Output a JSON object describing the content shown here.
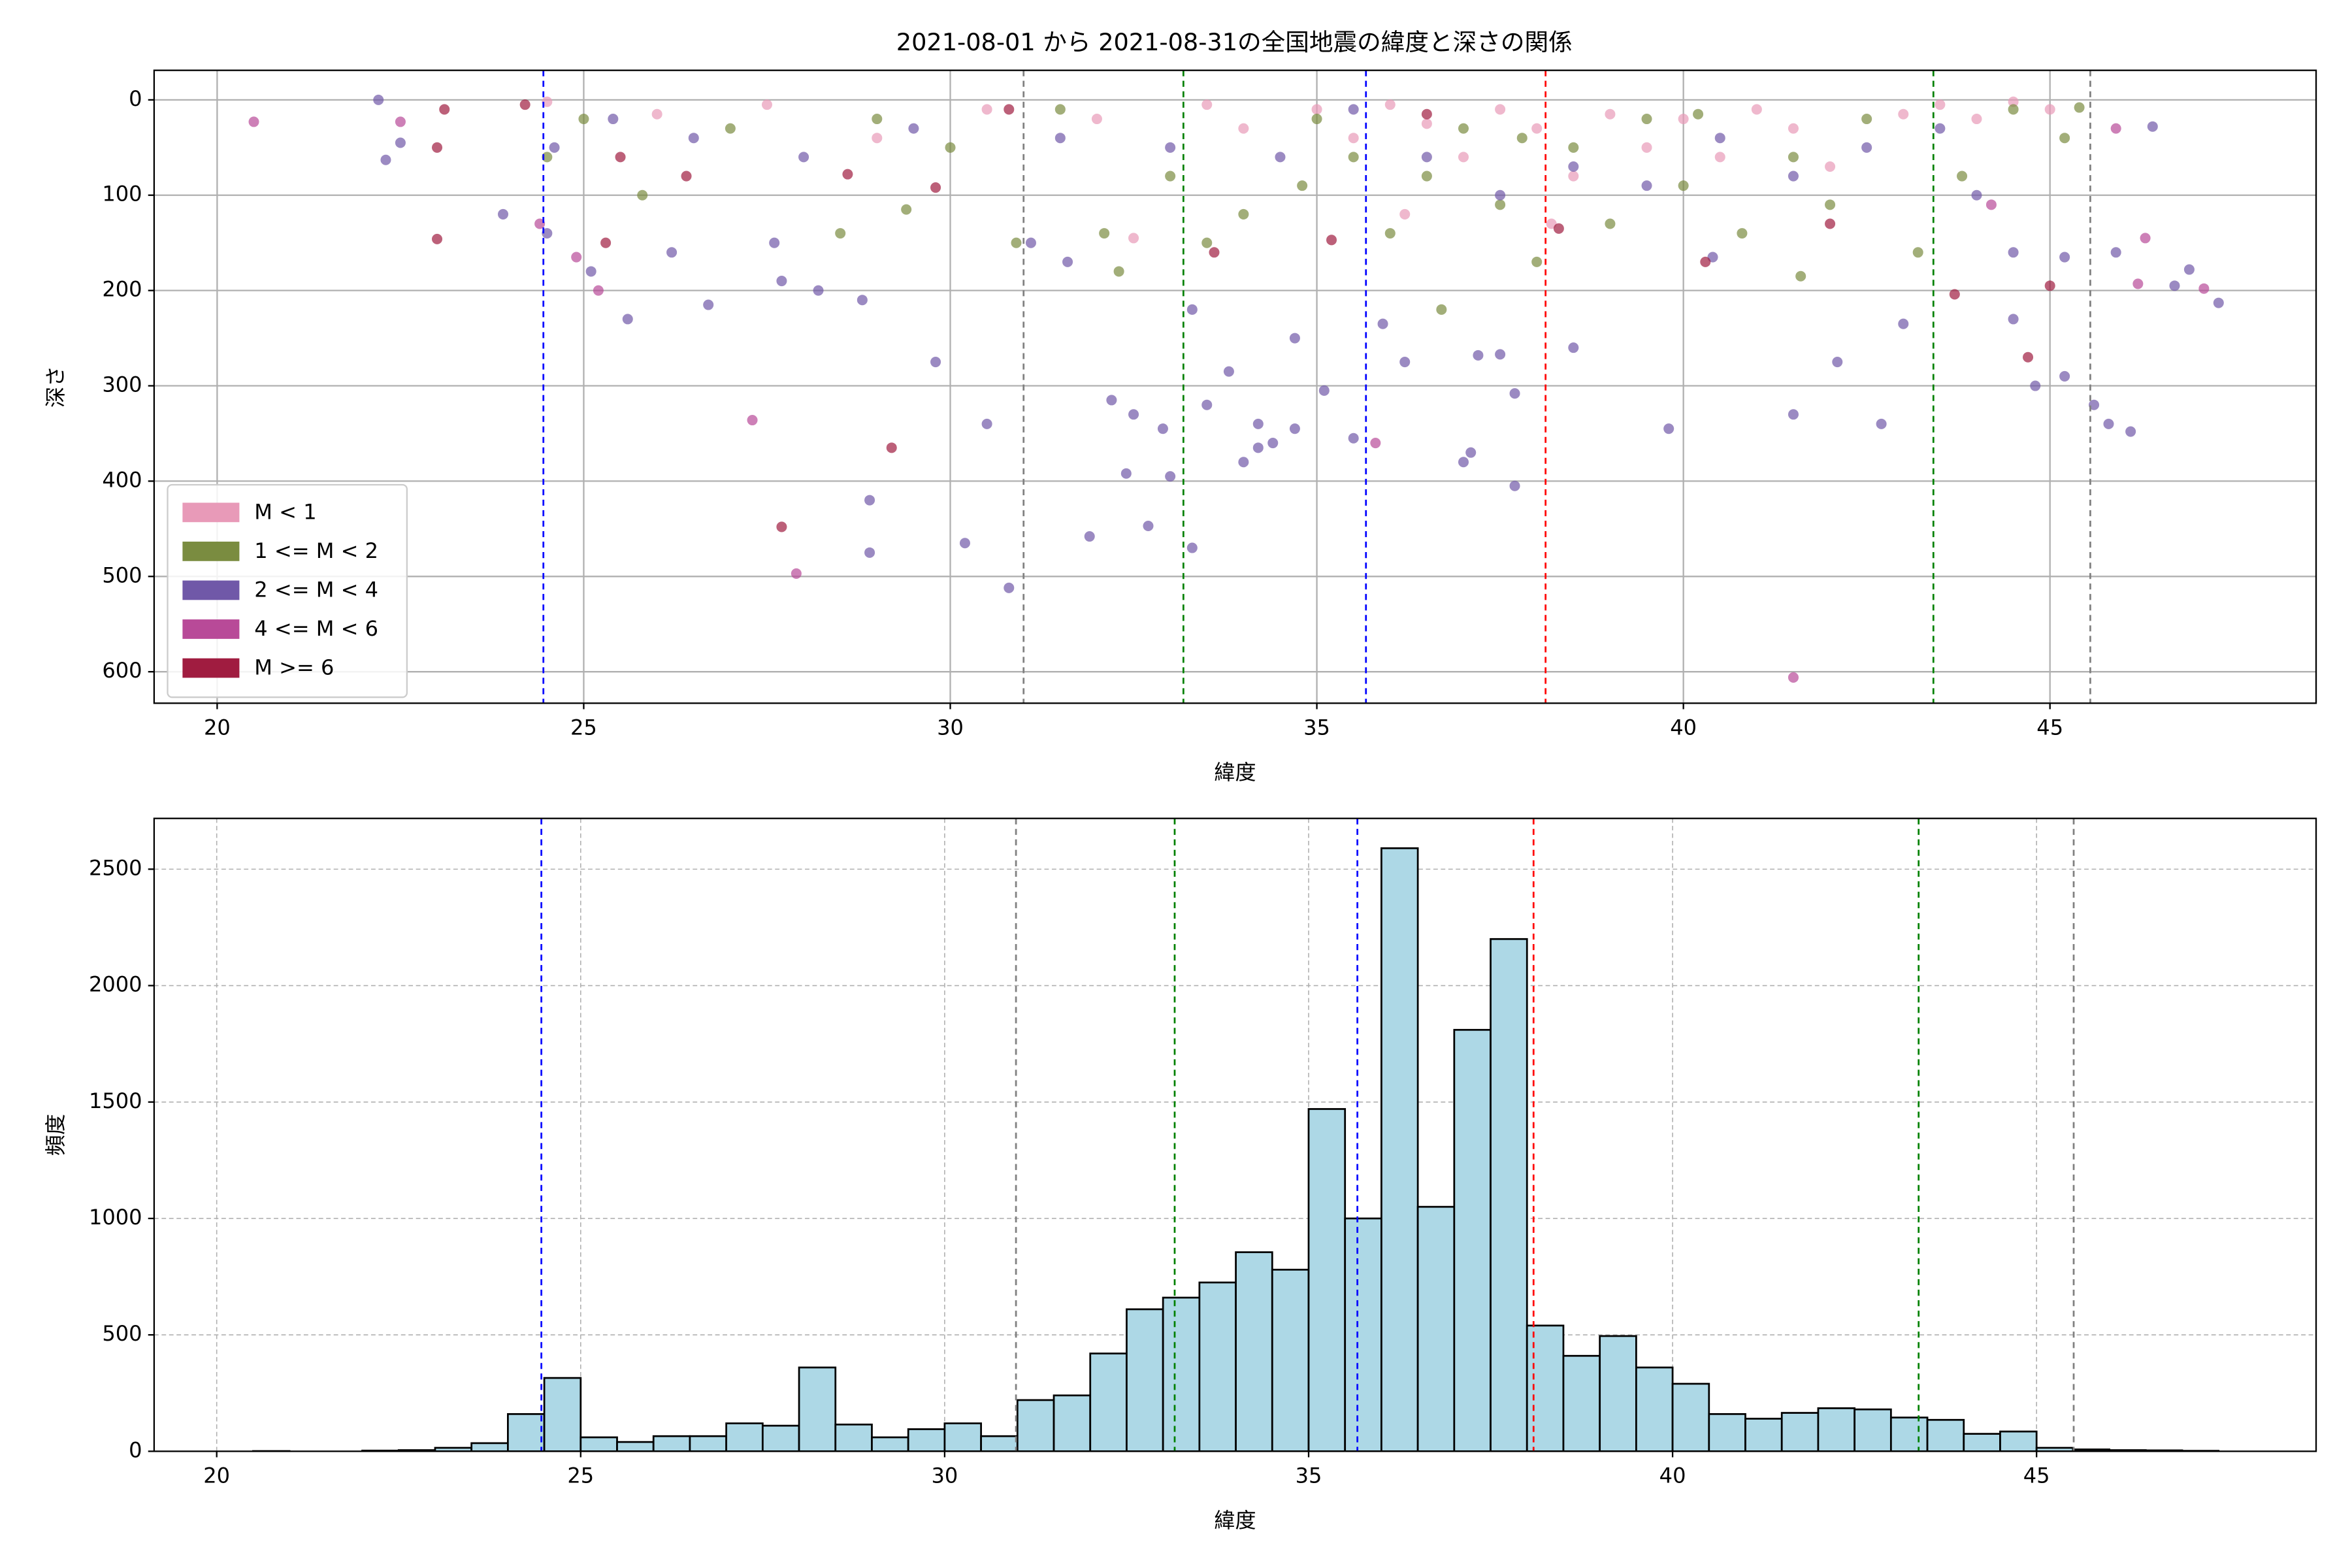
{
  "chart_data": [
    {
      "type": "scatter",
      "title": "2021-08-01 から 2021-08-31の全国地震の緯度と深さの関係",
      "xlabel": "緯度",
      "ylabel": "深さ",
      "xlim": [
        19.14,
        48.63
      ],
      "ylim": [
        -31,
        633
      ],
      "invert_y": true,
      "xticks": [
        20,
        25,
        30,
        35,
        40,
        45
      ],
      "yticks": [
        0,
        100,
        200,
        300,
        400,
        500,
        600
      ],
      "grid": true,
      "legend": "lower left",
      "alpha": 0.7,
      "vlines": [
        {
          "x": 24.45,
          "color": "blue"
        },
        {
          "x": 31.0,
          "color": "gray"
        },
        {
          "x": 33.18,
          "color": "green"
        },
        {
          "x": 35.67,
          "color": "blue"
        },
        {
          "x": 38.12,
          "color": "red"
        },
        {
          "x": 43.41,
          "color": "green"
        },
        {
          "x": 45.55,
          "color": "gray"
        }
      ],
      "series": [
        {
          "name": "M < 1",
          "color": "#e89ab8",
          "x": [
            24.5,
            26.0,
            27.5,
            29.0,
            30.5,
            32.0,
            32.5,
            33.5,
            34.0,
            35.0,
            35.5,
            36.0,
            36.5,
            37.0,
            37.5,
            38.0,
            38.5,
            39.0,
            39.5,
            40.0,
            40.5,
            41.0,
            41.5,
            42.0,
            43.0,
            43.5,
            44.0,
            44.5,
            45.0,
            38.2,
            36.2
          ],
          "y": [
            2,
            15,
            5,
            40,
            10,
            20,
            145,
            5,
            30,
            10,
            40,
            5,
            25,
            60,
            10,
            30,
            80,
            15,
            50,
            20,
            60,
            10,
            30,
            70,
            15,
            5,
            20,
            2,
            10,
            130,
            120
          ]
        },
        {
          "name": "1 <= M < 2",
          "color": "#7a8c40",
          "x": [
            24.5,
            25.0,
            25.8,
            27.0,
            28.5,
            29.0,
            30.0,
            30.9,
            31.5,
            32.3,
            33.0,
            33.5,
            34.0,
            34.8,
            35.5,
            36.0,
            36.5,
            37.0,
            37.5,
            38.0,
            38.5,
            39.0,
            39.5,
            40.0,
            40.8,
            41.5,
            42.0,
            42.5,
            43.2,
            43.8,
            44.5,
            45.2,
            45.4,
            36.7,
            41.6,
            32.1,
            29.4,
            35.0,
            37.8,
            40.2
          ],
          "y": [
            60,
            20,
            100,
            30,
            140,
            20,
            50,
            150,
            10,
            180,
            80,
            150,
            120,
            90,
            60,
            140,
            80,
            30,
            110,
            170,
            50,
            130,
            20,
            90,
            140,
            60,
            110,
            20,
            160,
            80,
            10,
            40,
            8,
            220,
            185,
            140,
            115,
            20,
            40,
            15
          ]
        },
        {
          "name": "2 <= M < 4",
          "color": "#7058a8",
          "x": [
            22.2,
            22.3,
            22.5,
            23.9,
            24.5,
            25.1,
            25.6,
            26.2,
            26.7,
            27.6,
            27.7,
            28.2,
            28.8,
            28.9,
            28.9,
            29.8,
            30.2,
            30.5,
            30.8,
            31.1,
            31.6,
            31.9,
            32.2,
            32.4,
            32.5,
            32.7,
            32.9,
            33.0,
            33.3,
            33.3,
            33.5,
            33.8,
            34.0,
            34.2,
            34.4,
            34.7,
            34.7,
            34.2,
            35.1,
            35.5,
            35.9,
            36.2,
            37.0,
            37.1,
            37.2,
            37.5,
            37.7,
            37.7,
            38.5,
            39.8,
            40.4,
            41.5,
            42.1,
            42.7,
            43.0,
            44.5,
            44.8,
            45.2,
            45.6,
            45.8,
            46.1,
            45.9,
            46.4,
            46.9,
            47.3,
            46.7,
            45.2,
            24.6,
            25.4,
            26.5,
            28.0,
            29.5,
            31.5,
            33.0,
            34.5,
            35.5,
            36.5,
            37.5,
            38.5,
            39.5,
            40.5,
            41.5,
            42.5,
            43.5,
            44.0,
            44.5
          ],
          "y": [
            0,
            63,
            45,
            120,
            140,
            180,
            230,
            160,
            215,
            150,
            190,
            200,
            210,
            420,
            475,
            275,
            465,
            340,
            512,
            150,
            170,
            458,
            315,
            392,
            330,
            447,
            345,
            395,
            470,
            220,
            320,
            285,
            380,
            365,
            360,
            345,
            250,
            340,
            305,
            355,
            235,
            275,
            380,
            370,
            268,
            267,
            308,
            405,
            260,
            345,
            165,
            330,
            275,
            340,
            235,
            230,
            300,
            290,
            320,
            340,
            348,
            160,
            28,
            178,
            213,
            195,
            165,
            50,
            20,
            40,
            60,
            30,
            40,
            50,
            60,
            10,
            60,
            100,
            70,
            90,
            40,
            80,
            50,
            30,
            100,
            160
          ]
        },
        {
          "name": "4 <= M < 6",
          "color": "#b84a98",
          "x": [
            20.5,
            27.3,
            27.9,
            35.8,
            41.5,
            46.3,
            46.2,
            47.1,
            24.9,
            25.2,
            45.9,
            22.5,
            24.4,
            44.2
          ],
          "y": [
            23,
            336,
            497,
            360,
            606,
            145,
            193,
            198,
            165,
            200,
            30,
            23,
            130,
            110
          ]
        },
        {
          "name": "M >= 6",
          "color": "#a01c40",
          "x": [
            23.0,
            23.0,
            29.2,
            27.7,
            35.2,
            44.7,
            43.7,
            45.0,
            33.6,
            25.5,
            26.4,
            30.8,
            40.3,
            38.3,
            42.0,
            23.1,
            24.2,
            36.5,
            28.6,
            29.8,
            25.3
          ],
          "y": [
            146,
            50,
            365,
            448,
            147,
            270,
            204,
            195,
            160,
            60,
            80,
            10,
            170,
            135,
            130,
            10,
            5,
            15,
            78,
            92,
            150
          ]
        }
      ]
    },
    {
      "type": "histogram",
      "xlabel": "緯度",
      "ylabel": "頻度",
      "xlim": [
        19.14,
        48.84
      ],
      "ylim": [
        0,
        2718
      ],
      "xticks": [
        20,
        25,
        30,
        35,
        40,
        45
      ],
      "yticks": [
        0,
        500,
        1000,
        1500,
        2000,
        2500
      ],
      "grid": "dashed",
      "color": "#add8e6",
      "edgecolor": "#000000",
      "vlines": [
        {
          "x": 24.46,
          "color": "blue"
        },
        {
          "x": 30.98,
          "color": "gray"
        },
        {
          "x": 33.16,
          "color": "green"
        },
        {
          "x": 35.67,
          "color": "blue"
        },
        {
          "x": 38.09,
          "color": "red"
        },
        {
          "x": 43.38,
          "color": "green"
        },
        {
          "x": 45.51,
          "color": "gray"
        }
      ],
      "bins": [
        20.5,
        21,
        21.5,
        22,
        22.5,
        23,
        23.5,
        24,
        24.5,
        25,
        25.5,
        26,
        26.5,
        27,
        27.5,
        28,
        28.5,
        29,
        29.5,
        30,
        30.5,
        31,
        31.5,
        32,
        32.5,
        33,
        33.5,
        34,
        34.5,
        35,
        35.5,
        36,
        36.5,
        37,
        37.5,
        38,
        38.5,
        39,
        39.5,
        40,
        40.5,
        41,
        41.5,
        42,
        42.5,
        43,
        43.5,
        44,
        44.5,
        45,
        45.5,
        46,
        46.5,
        47,
        47.5
      ],
      "values": [
        1,
        0,
        0,
        3,
        5,
        15,
        35,
        160,
        315,
        60,
        40,
        65,
        65,
        120,
        110,
        360,
        115,
        60,
        95,
        120,
        65,
        220,
        240,
        420,
        610,
        660,
        725,
        855,
        780,
        1470,
        1000,
        2590,
        1050,
        1810,
        2200,
        540,
        410,
        495,
        360,
        290,
        160,
        140,
        165,
        185,
        180,
        145,
        135,
        75,
        85,
        15,
        8,
        5,
        4,
        2
      ]
    }
  ]
}
